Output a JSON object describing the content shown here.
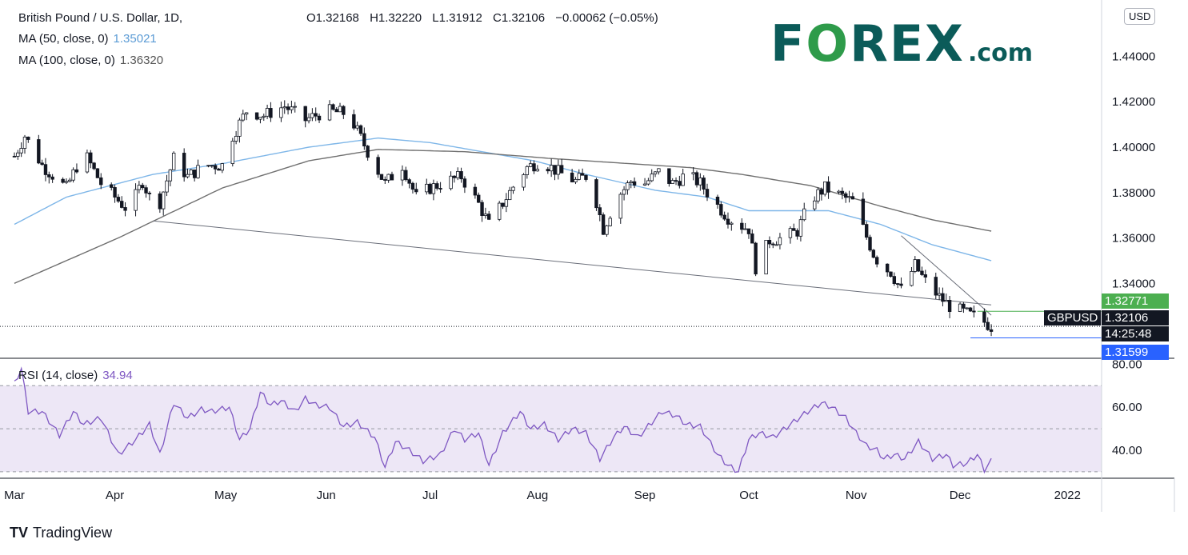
{
  "header": {
    "symbol_title": "British Pound / U.S. Dollar, 1D,",
    "open": "O1.32168",
    "high": "H1.32220",
    "low": "L1.31912",
    "close": "C1.32106",
    "change": "−0.00062 (−0.05%)",
    "ma50_label": "MA (50, close, 0)",
    "ma50_value": "1.35021",
    "ma100_label": "MA (100, close, 0)",
    "ma100_value": "1.36320",
    "rsi_label": "RSI (14, close)",
    "rsi_value": "34.94"
  },
  "logo": {
    "fo": "F",
    "o": "O",
    "rex": "REX",
    "dom": ".com"
  },
  "branding": {
    "tv_mark": "TV",
    "name": "TradingView"
  },
  "currency": "USD",
  "price_tags": {
    "upper_level": "1.32771",
    "symbol": "GBPUSD",
    "last": "1.32106",
    "countdown": "14:25:48",
    "lower_level": "1.31599"
  },
  "colors": {
    "up": "#131722",
    "down": "#131722",
    "ma50": "#7eb6e8",
    "ma100": "#707070",
    "rsi": "#7e57c2",
    "rsi_band": "#ede7f6",
    "green_tag": "#4caf50",
    "blue_tag": "#2962ff"
  },
  "chart_data": [
    {
      "type": "candlestick",
      "title": "British Pound / U.S. Dollar, 1D",
      "y_axis_ticks": [
        "1.44000",
        "1.42000",
        "1.40000",
        "1.38000",
        "1.36000",
        "1.34000"
      ],
      "ylim": [
        1.307,
        1.462
      ],
      "x_axis_ticks": [
        "Mar",
        "Apr",
        "May",
        "Jun",
        "Jul",
        "Aug",
        "Sep",
        "Oct",
        "Nov",
        "Dec",
        "2022"
      ],
      "tick_day_index": [
        0,
        29,
        61,
        90,
        120,
        151,
        182,
        212,
        243,
        273,
        304
      ],
      "last_day_index": 282,
      "anchors_close": [
        [
          0,
          1.396
        ],
        [
          3,
          1.405
        ],
        [
          8,
          1.392
        ],
        [
          15,
          1.382
        ],
        [
          20,
          1.398
        ],
        [
          25,
          1.384
        ],
        [
          29,
          1.378
        ],
        [
          33,
          1.372
        ],
        [
          37,
          1.385
        ],
        [
          41,
          1.371
        ],
        [
          46,
          1.395
        ],
        [
          50,
          1.387
        ],
        [
          55,
          1.392
        ],
        [
          61,
          1.392
        ],
        [
          63,
          1.405
        ],
        [
          67,
          1.416
        ],
        [
          72,
          1.414
        ],
        [
          78,
          1.418
        ],
        [
          84,
          1.412
        ],
        [
          90,
          1.416
        ],
        [
          95,
          1.415
        ],
        [
          98,
          1.41
        ],
        [
          103,
          1.395
        ],
        [
          107,
          1.384
        ],
        [
          112,
          1.392
        ],
        [
          116,
          1.378
        ],
        [
          120,
          1.382
        ],
        [
          125,
          1.385
        ],
        [
          129,
          1.387
        ],
        [
          134,
          1.375
        ],
        [
          137,
          1.366
        ],
        [
          140,
          1.373
        ],
        [
          145,
          1.385
        ],
        [
          148,
          1.391
        ],
        [
          152,
          1.394
        ],
        [
          157,
          1.389
        ],
        [
          162,
          1.385
        ],
        [
          166,
          1.388
        ],
        [
          170,
          1.364
        ],
        [
          174,
          1.378
        ],
        [
          178,
          1.385
        ],
        [
          182,
          1.384
        ],
        [
          186,
          1.389
        ],
        [
          190,
          1.384
        ],
        [
          194,
          1.388
        ],
        [
          198,
          1.384
        ],
        [
          202,
          1.376
        ],
        [
          206,
          1.369
        ],
        [
          209,
          1.366
        ],
        [
          212,
          1.364
        ],
        [
          214,
          1.347
        ],
        [
          218,
          1.359
        ],
        [
          222,
          1.36
        ],
        [
          226,
          1.363
        ],
        [
          230,
          1.377
        ],
        [
          234,
          1.382
        ],
        [
          238,
          1.379
        ],
        [
          242,
          1.376
        ],
        [
          244,
          1.368
        ],
        [
          248,
          1.353
        ],
        [
          250,
          1.348
        ],
        [
          253,
          1.345
        ],
        [
          256,
          1.337
        ],
        [
          260,
          1.348
        ],
        [
          262,
          1.343
        ],
        [
          264,
          1.339
        ],
        [
          267,
          1.334
        ],
        [
          270,
          1.33
        ],
        [
          273,
          1.328
        ],
        [
          276,
          1.326
        ],
        [
          279,
          1.324
        ],
        [
          281,
          1.322
        ],
        [
          282,
          1.321
        ]
      ],
      "series_ma": [
        {
          "name": "MA (50, close, 0)",
          "anchors": [
            [
              0,
              1.366
            ],
            [
              15,
              1.378
            ],
            [
              40,
              1.388
            ],
            [
              61,
              1.393
            ],
            [
              85,
              1.4
            ],
            [
              105,
              1.404
            ],
            [
              120,
              1.402
            ],
            [
              150,
              1.394
            ],
            [
              165,
              1.388
            ],
            [
              185,
              1.381
            ],
            [
              200,
              1.378
            ],
            [
              212,
              1.372
            ],
            [
              235,
              1.372
            ],
            [
              250,
              1.366
            ],
            [
              265,
              1.357
            ],
            [
              282,
              1.35
            ]
          ]
        },
        {
          "name": "MA (100, close, 0)",
          "anchors": [
            [
              0,
              1.34
            ],
            [
              30,
              1.36
            ],
            [
              60,
              1.382
            ],
            [
              85,
              1.394
            ],
            [
              105,
              1.399
            ],
            [
              130,
              1.398
            ],
            [
              155,
              1.395
            ],
            [
              175,
              1.393
            ],
            [
              195,
              1.391
            ],
            [
              210,
              1.388
            ],
            [
              230,
              1.383
            ],
            [
              250,
              1.374
            ],
            [
              265,
              1.368
            ],
            [
              282,
              1.363
            ]
          ]
        }
      ],
      "trendlines": [
        {
          "name": "long-support",
          "from": [
            40,
            1.3675
          ],
          "to": [
            282,
            1.3305
          ]
        },
        {
          "name": "short-resistance",
          "from": [
            256,
            1.361
          ],
          "to": [
            282,
            1.326
          ]
        },
        {
          "name": "upper-level",
          "from": [
            278,
            1.32771
          ],
          "to": [
            300,
            1.32771
          ]
        },
        {
          "name": "lower-level",
          "from": [
            276,
            1.31599
          ],
          "to": [
            300,
            1.31599
          ]
        }
      ],
      "last_price": 1.32106
    },
    {
      "type": "line",
      "title": "RSI (14, close)",
      "y_axis_ticks": [
        "80.00",
        "60.00",
        "40.00"
      ],
      "ylim": [
        27,
        82
      ],
      "band": [
        30,
        70
      ],
      "midline": 50,
      "anchors": [
        [
          0,
          71
        ],
        [
          2,
          78
        ],
        [
          4,
          58
        ],
        [
          8,
          58
        ],
        [
          13,
          47
        ],
        [
          17,
          58
        ],
        [
          20,
          52
        ],
        [
          25,
          55
        ],
        [
          30,
          38
        ],
        [
          35,
          45
        ],
        [
          39,
          52
        ],
        [
          42,
          38
        ],
        [
          46,
          62
        ],
        [
          50,
          55
        ],
        [
          54,
          59
        ],
        [
          57,
          58
        ],
        [
          62,
          60
        ],
        [
          65,
          45
        ],
        [
          68,
          50
        ],
        [
          71,
          67
        ],
        [
          74,
          61
        ],
        [
          77,
          63
        ],
        [
          81,
          58
        ],
        [
          84,
          64
        ],
        [
          87,
          61
        ],
        [
          91,
          60
        ],
        [
          95,
          51
        ],
        [
          99,
          53
        ],
        [
          104,
          46
        ],
        [
          107,
          32
        ],
        [
          110,
          44
        ],
        [
          114,
          40
        ],
        [
          118,
          35
        ],
        [
          123,
          38
        ],
        [
          127,
          50
        ],
        [
          130,
          45
        ],
        [
          134,
          48
        ],
        [
          137,
          33
        ],
        [
          141,
          48
        ],
        [
          146,
          58
        ],
        [
          149,
          50
        ],
        [
          153,
          52
        ],
        [
          157,
          45
        ],
        [
          161,
          50
        ],
        [
          165,
          48
        ],
        [
          169,
          36
        ],
        [
          173,
          46
        ],
        [
          176,
          51
        ],
        [
          180,
          46
        ],
        [
          184,
          53
        ],
        [
          187,
          58
        ],
        [
          191,
          56
        ],
        [
          194,
          52
        ],
        [
          198,
          51
        ],
        [
          203,
          38
        ],
        [
          206,
          33
        ],
        [
          209,
          30
        ],
        [
          212,
          45
        ],
        [
          215,
          48
        ],
        [
          219,
          46
        ],
        [
          224,
          52
        ],
        [
          229,
          58
        ],
        [
          233,
          62
        ],
        [
          236,
          60
        ],
        [
          240,
          55
        ],
        [
          243,
          48
        ],
        [
          246,
          42
        ],
        [
          249,
          40
        ],
        [
          251,
          36
        ],
        [
          254,
          38
        ],
        [
          257,
          36
        ],
        [
          261,
          44
        ],
        [
          265,
          36
        ],
        [
          269,
          38
        ],
        [
          271,
          33
        ],
        [
          275,
          34
        ],
        [
          278,
          38
        ],
        [
          280,
          31
        ],
        [
          282,
          35
        ]
      ],
      "last_value": 34.94
    }
  ]
}
